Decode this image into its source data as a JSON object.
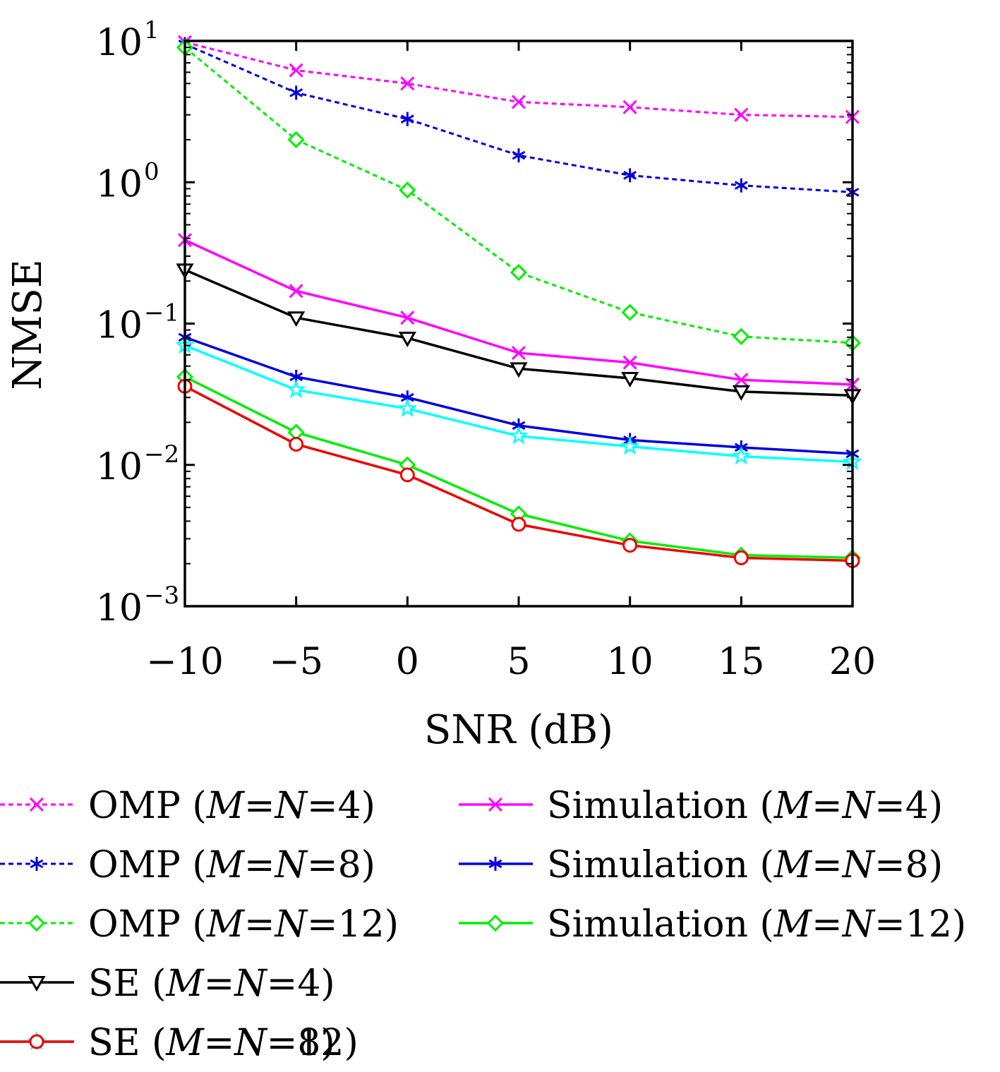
{
  "chart_data": {
    "type": "line",
    "title": "",
    "xlabel": "SNR (dB)",
    "ylabel": "NMSE",
    "x": [
      -10,
      -5,
      0,
      5,
      10,
      15,
      20
    ],
    "xlim": [
      -10,
      20
    ],
    "ylim": [
      0.001,
      10
    ],
    "yscale": "log",
    "xticks": [
      "−10",
      "−5",
      "0",
      "5",
      "10",
      "15",
      "20"
    ],
    "yticks": [
      {
        "value": 10,
        "base": "10",
        "exp": "1"
      },
      {
        "value": 1,
        "base": "10",
        "exp": "0"
      },
      {
        "value": 0.1,
        "base": "10",
        "exp": "−1"
      },
      {
        "value": 0.01,
        "base": "10",
        "exp": "−2"
      },
      {
        "value": 0.001,
        "base": "10",
        "exp": "−3"
      }
    ],
    "grid": false,
    "legend_placement": "below",
    "series": [
      {
        "name": "OMP (M=N=4)",
        "prefix": "OMP (",
        "color": "#ff00ff",
        "style": "dotted",
        "marker": "x",
        "values": [
          9.8,
          6.2,
          5.0,
          3.7,
          3.4,
          3.0,
          2.9
        ]
      },
      {
        "name": "OMP (M=N=8)",
        "prefix": "OMP (",
        "color": "#0000e0",
        "style": "dotted",
        "marker": "asterisk",
        "values": [
          9.5,
          4.3,
          2.8,
          1.55,
          1.12,
          0.95,
          0.85
        ]
      },
      {
        "name": "OMP (M=N=12)",
        "prefix": "OMP (",
        "color": "#00ee00",
        "style": "dotted",
        "marker": "diamond",
        "values": [
          9.0,
          2.0,
          0.88,
          0.23,
          0.12,
          0.081,
          0.073
        ]
      },
      {
        "name": "Simulation (M=N=4)",
        "prefix": "Simulation (",
        "color": "#ff00ff",
        "style": "solid",
        "marker": "x",
        "values": [
          0.39,
          0.17,
          0.11,
          0.062,
          0.053,
          0.04,
          0.037
        ]
      },
      {
        "name": "Simulation (M=N=8)",
        "prefix": "Simulation (",
        "color": "#0000e0",
        "style": "solid",
        "marker": "asterisk",
        "values": [
          0.08,
          0.042,
          0.03,
          0.019,
          0.015,
          0.0133,
          0.012
        ]
      },
      {
        "name": "Simulation (M=N=12)",
        "prefix": "Simulation (",
        "color": "#00ee00",
        "style": "solid",
        "marker": "diamond",
        "values": [
          0.042,
          0.017,
          0.01,
          0.0045,
          0.0029,
          0.0023,
          0.0022
        ]
      },
      {
        "name": "SE (M=N=4)",
        "prefix": "SE (",
        "color": "#000000",
        "style": "solid",
        "marker": "triangle-down",
        "values": [
          0.24,
          0.11,
          0.079,
          0.048,
          0.041,
          0.033,
          0.031
        ]
      },
      {
        "name": "SE (M=N=8)",
        "prefix": "SE (",
        "color": "#00ffff",
        "style": "solid",
        "marker": "star",
        "values": [
          0.07,
          0.034,
          0.025,
          0.016,
          0.0135,
          0.0115,
          0.0105
        ]
      },
      {
        "name": "SE (M=N=12)",
        "prefix": "SE (",
        "color": "#ee0000",
        "style": "solid",
        "marker": "circle",
        "values": [
          0.036,
          0.014,
          0.0085,
          0.0038,
          0.0027,
          0.0022,
          0.0021
        ]
      }
    ],
    "legend_order": [
      0,
      3,
      1,
      4,
      2,
      5,
      6,
      7,
      8
    ],
    "legend_label_parts": {
      "M": "M",
      "eq1": "=",
      "N": "N",
      "eq2": "=",
      "suffix_4": "4)",
      "suffix_8": "8)",
      "suffix_12": "12)"
    }
  }
}
